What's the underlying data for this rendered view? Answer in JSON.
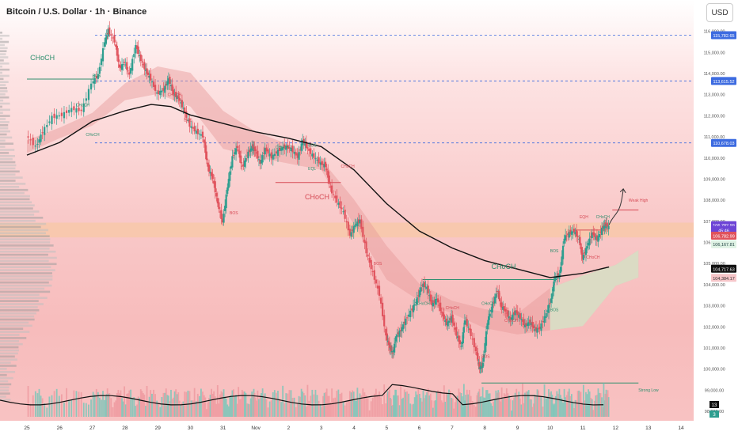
{
  "header": {
    "title": "Bitcoin / U.S. Dollar · 1h · Binance",
    "currency_button": "USD"
  },
  "colors": {
    "up": "#2e9e8f",
    "down": "#e0525c",
    "ma": "#111111",
    "blue_level": "#3d6be0",
    "purple_label": "#6d44d6",
    "green_label": "#dff2e4"
  },
  "chart_data": {
    "type": "candlestick",
    "symbol": "Bitcoin / U.S. Dollar",
    "interval": "1h",
    "exchange": "Binance",
    "x_tick_labels": [
      "25",
      "26",
      "27",
      "28",
      "29",
      "30",
      "31",
      "Nov",
      "2",
      "3",
      "4",
      "5",
      "6",
      "7",
      "8",
      "9",
      "10",
      "11",
      "12",
      "13",
      "14"
    ],
    "y_tick_labels": [
      "116,000.00",
      "115,000.00",
      "114,000.00",
      "113,000.00",
      "112,000.00",
      "111,000.00",
      "110,000.00",
      "109,000.00",
      "108,000.00",
      "107,000.00",
      "106,000.00",
      "105,000.00",
      "104,000.00",
      "103,000.00",
      "102,000.00",
      "101,000.00",
      "100,000.00",
      "99,000.00",
      "98,000.00"
    ],
    "ylim": [
      97700,
      116400
    ],
    "price_path": [
      [
        0,
        111050
      ],
      [
        0.3,
        110500
      ],
      [
        0.5,
        111200
      ],
      [
        0.8,
        111900
      ],
      [
        1.1,
        112000
      ],
      [
        1.4,
        112300
      ],
      [
        1.7,
        112200
      ],
      [
        2.0,
        113500
      ],
      [
        2.2,
        113900
      ],
      [
        2.4,
        115500
      ],
      [
        2.5,
        116000
      ],
      [
        2.7,
        115500
      ],
      [
        2.85,
        114200
      ],
      [
        3.0,
        114500
      ],
      [
        3.15,
        113900
      ],
      [
        3.35,
        115300
      ],
      [
        3.5,
        114600
      ],
      [
        3.65,
        114100
      ],
      [
        3.8,
        113700
      ],
      [
        4.0,
        113000
      ],
      [
        4.2,
        113200
      ],
      [
        4.35,
        113700
      ],
      [
        4.5,
        113000
      ],
      [
        4.65,
        112800
      ],
      [
        4.8,
        112300
      ],
      [
        5.0,
        111500
      ],
      [
        5.2,
        111200
      ],
      [
        5.4,
        111000
      ],
      [
        5.55,
        109500
      ],
      [
        5.7,
        109000
      ],
      [
        5.85,
        107800
      ],
      [
        6.0,
        106900
      ],
      [
        6.15,
        108600
      ],
      [
        6.3,
        110000
      ],
      [
        6.45,
        110500
      ],
      [
        6.6,
        109500
      ],
      [
        6.75,
        110100
      ],
      [
        6.9,
        110500
      ],
      [
        7.0,
        110300
      ],
      [
        7.15,
        109700
      ],
      [
        7.3,
        110400
      ],
      [
        7.5,
        110000
      ],
      [
        7.7,
        110300
      ],
      [
        7.9,
        110500
      ],
      [
        8.1,
        110400
      ],
      [
        8.3,
        110000
      ],
      [
        8.45,
        110800
      ],
      [
        8.6,
        110400
      ],
      [
        8.8,
        110000
      ],
      [
        9.0,
        109700
      ],
      [
        9.15,
        109600
      ],
      [
        9.3,
        108500
      ],
      [
        9.5,
        107900
      ],
      [
        9.7,
        107400
      ],
      [
        9.9,
        106300
      ],
      [
        10.05,
        106800
      ],
      [
        10.2,
        107000
      ],
      [
        10.4,
        105500
      ],
      [
        10.6,
        104500
      ],
      [
        10.8,
        103500
      ],
      [
        11.0,
        101500
      ],
      [
        11.1,
        101000
      ],
      [
        11.2,
        100700
      ],
      [
        11.3,
        101500
      ],
      [
        11.45,
        101800
      ],
      [
        11.6,
        102300
      ],
      [
        11.8,
        102800
      ],
      [
        11.95,
        103300
      ],
      [
        12.1,
        104000
      ],
      [
        12.25,
        103800
      ],
      [
        12.4,
        103000
      ],
      [
        12.55,
        103300
      ],
      [
        12.7,
        102600
      ],
      [
        12.85,
        102100
      ],
      [
        13.0,
        102400
      ],
      [
        13.15,
        101600
      ],
      [
        13.3,
        101000
      ],
      [
        13.4,
        102300
      ],
      [
        13.55,
        101800
      ],
      [
        13.75,
        100800
      ],
      [
        13.85,
        100000
      ],
      [
        13.95,
        100200
      ],
      [
        14.1,
        102200
      ],
      [
        14.25,
        103000
      ],
      [
        14.4,
        103700
      ],
      [
        14.5,
        103000
      ],
      [
        14.65,
        102700
      ],
      [
        14.8,
        102300
      ],
      [
        14.95,
        102700
      ],
      [
        15.1,
        102400
      ],
      [
        15.25,
        102000
      ],
      [
        15.4,
        102200
      ],
      [
        15.55,
        101800
      ],
      [
        15.7,
        101900
      ],
      [
        15.9,
        102600
      ],
      [
        16.05,
        103300
      ],
      [
        16.15,
        104300
      ],
      [
        16.3,
        104400
      ],
      [
        16.45,
        106200
      ],
      [
        16.6,
        106400
      ],
      [
        16.75,
        106500
      ],
      [
        16.9,
        106100
      ],
      [
        17.0,
        105200
      ],
      [
        17.15,
        105800
      ],
      [
        17.3,
        106400
      ],
      [
        17.45,
        106100
      ],
      [
        17.6,
        106600
      ],
      [
        17.7,
        106800
      ],
      [
        17.8,
        106700
      ]
    ],
    "moving_average": [
      [
        0,
        110100
      ],
      [
        1,
        110700
      ],
      [
        2,
        111700
      ],
      [
        3,
        112200
      ],
      [
        3.8,
        112500
      ],
      [
        4.4,
        112400
      ],
      [
        5,
        112000
      ],
      [
        6,
        111600
      ],
      [
        7,
        111200
      ],
      [
        8,
        110900
      ],
      [
        9,
        110500
      ],
      [
        10,
        109400
      ],
      [
        11,
        107800
      ],
      [
        12,
        106500
      ],
      [
        13,
        105700
      ],
      [
        14,
        105100
      ],
      [
        15,
        104700
      ],
      [
        16,
        104300
      ],
      [
        17,
        104500
      ],
      [
        17.8,
        104800
      ]
    ],
    "cloud_upper": [
      [
        0,
        110800
      ],
      [
        1,
        111400
      ],
      [
        2,
        112100
      ],
      [
        3,
        113500
      ],
      [
        4,
        114300
      ],
      [
        5,
        114000
      ],
      [
        6,
        112200
      ],
      [
        7,
        111200
      ],
      [
        8,
        110600
      ],
      [
        9,
        109900
      ],
      [
        10,
        108000
      ],
      [
        11,
        105800
      ],
      [
        12,
        104000
      ],
      [
        13,
        103200
      ],
      [
        14,
        102800
      ],
      [
        15,
        102600
      ],
      [
        16,
        103800
      ],
      [
        17,
        104400
      ],
      [
        18,
        104900
      ],
      [
        18.7,
        105600
      ]
    ],
    "cloud_lower": [
      [
        0,
        110200
      ],
      [
        1,
        110900
      ],
      [
        2,
        111500
      ],
      [
        3,
        112700
      ],
      [
        4,
        113000
      ],
      [
        5,
        112400
      ],
      [
        6,
        110400
      ],
      [
        7,
        110000
      ],
      [
        8,
        109700
      ],
      [
        9,
        109400
      ],
      [
        10,
        106800
      ],
      [
        11,
        104200
      ],
      [
        12,
        103200
      ],
      [
        13,
        102600
      ],
      [
        14,
        101900
      ],
      [
        15,
        101600
      ],
      [
        16,
        101800
      ],
      [
        17,
        102000
      ],
      [
        18,
        103900
      ],
      [
        18.7,
        104300
      ]
    ],
    "price_labels": [
      {
        "text": "115,782.65",
        "price": 115782,
        "style": "blue"
      },
      {
        "text": "113,615.52",
        "price": 113615,
        "style": "blue"
      },
      {
        "text": "110,678.03",
        "price": 110678,
        "style": "blue"
      },
      {
        "text": "106,782.99",
        "price": 106783,
        "style": "purple"
      },
      {
        "text": "45:46",
        "price": 106550,
        "style": "purple"
      },
      {
        "text": "106,782.99",
        "price": 106283,
        "style": "red"
      },
      {
        "text": "106,167.81",
        "price": 105880,
        "style": "green"
      },
      {
        "text": "104,717.63",
        "price": 104717,
        "style": "black"
      },
      {
        "text": "104,384.17",
        "price": 104284,
        "style": "pink"
      }
    ],
    "annotations": [
      {
        "text": "CHoCH",
        "x": 0.1,
        "price": 114600,
        "color": "#2e8f6e",
        "size": 9
      },
      {
        "text": "BOS",
        "x": 2.0,
        "price": 113800,
        "color": "#2e8f6e",
        "size": 5
      },
      {
        "text": "CHoCH",
        "x": 1.5,
        "price": 112400,
        "color": "#2e8f6e",
        "size": 5
      },
      {
        "text": "CHoCH",
        "x": 1.8,
        "price": 111000,
        "color": "#2e8f6e",
        "size": 5
      },
      {
        "text": "CHoCH",
        "x": 4.3,
        "price": 112900,
        "color": "#d64a55",
        "size": 5
      },
      {
        "text": "BOS",
        "x": 4.8,
        "price": 111700,
        "color": "#d64a55",
        "size": 5
      },
      {
        "text": "BOS",
        "x": 6.2,
        "price": 107300,
        "color": "#d64a55",
        "size": 5
      },
      {
        "text": "CHoCH",
        "x": 7.6,
        "price": 110400,
        "color": "#2e8f6e",
        "size": 5
      },
      {
        "text": "BOS",
        "x": 8.6,
        "price": 110500,
        "color": "#2e8f6e",
        "size": 5
      },
      {
        "text": "EQL",
        "x": 8.6,
        "price": 109400,
        "color": "#2e8f6e",
        "size": 5
      },
      {
        "text": "CHoCH",
        "x": 9.6,
        "price": 109500,
        "color": "#d64a55",
        "size": 5
      },
      {
        "text": "CHoCH",
        "x": 8.5,
        "price": 108000,
        "color": "#d64a55",
        "size": 9
      },
      {
        "text": "BOS",
        "x": 10.6,
        "price": 104900,
        "color": "#d64a55",
        "size": 5
      },
      {
        "text": "CHoCH",
        "x": 14.2,
        "price": 104700,
        "color": "#2e8f6e",
        "size": 9
      },
      {
        "text": "CHoCH",
        "x": 11.9,
        "price": 103000,
        "color": "#2e8f6e",
        "size": 5
      },
      {
        "text": "CHoCH",
        "x": 12.8,
        "price": 102800,
        "color": "#d64a55",
        "size": 5
      },
      {
        "text": "CHoCH",
        "x": 13.9,
        "price": 103000,
        "color": "#2e8f6e",
        "size": 5
      },
      {
        "text": "CHoCH",
        "x": 14.6,
        "price": 102200,
        "color": "#d64a55",
        "size": 5
      },
      {
        "text": "BOS",
        "x": 13.9,
        "price": 100500,
        "color": "#d64a55",
        "size": 5
      },
      {
        "text": "BOS",
        "x": 16.0,
        "price": 102700,
        "color": "#2e8f6e",
        "size": 5
      },
      {
        "text": "BOS",
        "x": 16.0,
        "price": 105500,
        "color": "#2e8f6e",
        "size": 5
      },
      {
        "text": "EQH",
        "x": 16.9,
        "price": 107100,
        "color": "#d64a55",
        "size": 5
      },
      {
        "text": "CHoCH",
        "x": 17.4,
        "price": 107100,
        "color": "#2e8f6e",
        "size": 5
      },
      {
        "text": "CHoCH",
        "x": 17.1,
        "price": 105200,
        "color": "#d64a55",
        "size": 5
      },
      {
        "text": "Weak High",
        "x": 18.4,
        "price": 107900,
        "color": "#d64a55",
        "size": 5
      },
      {
        "text": "Strong Low",
        "x": 18.7,
        "price": 98900,
        "color": "#2e8f6e",
        "size": 5
      }
    ],
    "volume_axis_labels": [
      "13",
      "3"
    ],
    "legend": "none",
    "grid": false
  }
}
